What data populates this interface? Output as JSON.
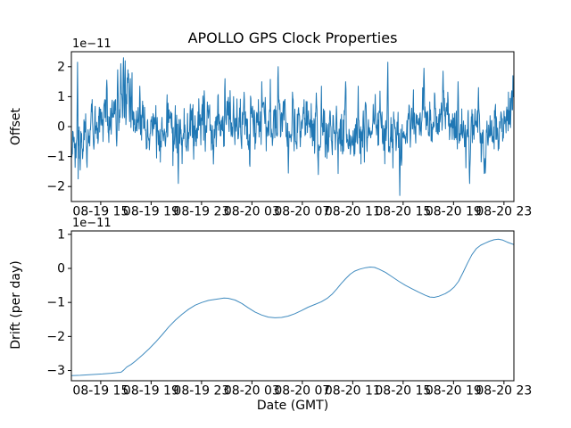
{
  "figure": {
    "title": "APOLLO GPS Clock Properties",
    "xlabel": "Date (GMT)",
    "background": "#ffffff",
    "line_color": "#1f77b4"
  },
  "chart_data": [
    {
      "id": "offset",
      "type": "line",
      "ylabel": "Offset",
      "offset_text": "1e−11",
      "ylim": [
        -2.5,
        2.5
      ],
      "yticks": [
        2,
        1,
        0,
        -1,
        -2
      ],
      "ytick_labels": [
        "2",
        "1",
        "0",
        "−1",
        "−2"
      ],
      "xlim_hours": [
        12.67,
        47.79
      ],
      "xticks_hours": [
        15,
        19,
        23,
        27,
        31,
        35,
        39,
        43,
        47
      ],
      "xtick_labels": [
        "08-19 15",
        "08-19 19",
        "08-19 23",
        "08-20 03",
        "08-20 07",
        "08-20 11",
        "08-20 15",
        "08-20 19",
        "08-20 23"
      ],
      "series": {
        "kind": "noise",
        "color": "#1f77b4",
        "width": 1,
        "opacity": 1,
        "n_points": 1300,
        "seed": 20030819,
        "noise_std": 0.45,
        "ar": 0.42,
        "clip": [
          -2.35,
          2.3
        ],
        "mean_wander": [
          [
            0,
            -0.55
          ],
          [
            0.012,
            -1.1
          ],
          [
            0.03,
            0.1
          ],
          [
            0.06,
            0.05
          ],
          [
            0.1,
            0.3
          ],
          [
            0.115,
            0.85
          ],
          [
            0.125,
            0.75
          ],
          [
            0.14,
            0.2
          ],
          [
            0.16,
            0.05
          ],
          [
            0.2,
            -0.05
          ],
          [
            0.24,
            -0.3
          ],
          [
            0.28,
            0.0
          ],
          [
            0.32,
            0.05
          ],
          [
            0.36,
            0.15
          ],
          [
            0.4,
            0.0
          ],
          [
            0.44,
            0.2
          ],
          [
            0.47,
            0.3
          ],
          [
            0.5,
            -0.1
          ],
          [
            0.53,
            0.3
          ],
          [
            0.56,
            -0.2
          ],
          [
            0.6,
            -0.3
          ],
          [
            0.64,
            -0.1
          ],
          [
            0.68,
            0.1
          ],
          [
            0.71,
            -0.1
          ],
          [
            0.74,
            -0.45
          ],
          [
            0.77,
            0.1
          ],
          [
            0.8,
            0.35
          ],
          [
            0.83,
            0.3
          ],
          [
            0.86,
            0.2
          ],
          [
            0.9,
            -0.3
          ],
          [
            0.93,
            -0.4
          ],
          [
            0.96,
            -0.15
          ],
          [
            0.99,
            0.3
          ],
          [
            1,
            1.15
          ]
        ],
        "spikes": [
          [
            0.014,
            2.15
          ],
          [
            0.02,
            -1.45
          ],
          [
            0.08,
            1.55
          ],
          [
            0.105,
            1.9
          ],
          [
            0.112,
            2.1
          ],
          [
            0.118,
            2.3
          ],
          [
            0.122,
            2.2
          ],
          [
            0.128,
            1.9
          ],
          [
            0.133,
            1.6
          ],
          [
            0.155,
            1.35
          ],
          [
            0.242,
            -1.9
          ],
          [
            0.3,
            1.2
          ],
          [
            0.347,
            1.6
          ],
          [
            0.39,
            1.15
          ],
          [
            0.43,
            1.5
          ],
          [
            0.467,
            2.0
          ],
          [
            0.49,
            -1.55
          ],
          [
            0.558,
            -1.6
          ],
          [
            0.565,
            1.35
          ],
          [
            0.62,
            1.5
          ],
          [
            0.648,
            1.35
          ],
          [
            0.715,
            2.15
          ],
          [
            0.742,
            -2.3
          ],
          [
            0.797,
            1.95
          ],
          [
            0.84,
            1.85
          ],
          [
            0.874,
            1.5
          ],
          [
            0.9,
            -1.9
          ],
          [
            0.92,
            1.3
          ],
          [
            0.935,
            -1.55
          ],
          [
            0.995,
            1.2
          ]
        ]
      }
    },
    {
      "id": "drift",
      "type": "line",
      "ylabel": "Drift (per day)",
      "offset_text": "1e−11",
      "ylim": [
        -3.3,
        1.1
      ],
      "yticks": [
        1,
        0,
        -1,
        -2,
        -3
      ],
      "ytick_labels": [
        "1",
        "0",
        "−1",
        "−2",
        "−3"
      ],
      "xlim_hours": [
        12.67,
        47.79
      ],
      "xticks_hours": [
        15,
        19,
        23,
        27,
        31,
        35,
        39,
        43,
        47
      ],
      "xtick_labels": [
        "08-19 15",
        "08-19 19",
        "08-19 23",
        "08-20 03",
        "08-20 07",
        "08-20 11",
        "08-20 15",
        "08-20 19",
        "08-20 23"
      ],
      "series": {
        "kind": "points",
        "color": "#1f77b4",
        "width": 1,
        "opacity": 0.85,
        "points": [
          [
            0,
            -3.15
          ],
          [
            0.02,
            -3.14
          ],
          [
            0.045,
            -3.12
          ],
          [
            0.07,
            -3.1
          ],
          [
            0.09,
            -3.08
          ],
          [
            0.105,
            -3.06
          ],
          [
            0.112,
            -3.05
          ],
          [
            0.118,
            -2.99
          ],
          [
            0.125,
            -2.9
          ],
          [
            0.135,
            -2.82
          ],
          [
            0.145,
            -2.72
          ],
          [
            0.16,
            -2.55
          ],
          [
            0.175,
            -2.37
          ],
          [
            0.19,
            -2.17
          ],
          [
            0.205,
            -1.95
          ],
          [
            0.22,
            -1.72
          ],
          [
            0.235,
            -1.52
          ],
          [
            0.25,
            -1.35
          ],
          [
            0.265,
            -1.2
          ],
          [
            0.28,
            -1.08
          ],
          [
            0.295,
            -1.0
          ],
          [
            0.31,
            -0.94
          ],
          [
            0.325,
            -0.91
          ],
          [
            0.335,
            -0.89
          ],
          [
            0.345,
            -0.87
          ],
          [
            0.355,
            -0.88
          ],
          [
            0.37,
            -0.93
          ],
          [
            0.385,
            -1.03
          ],
          [
            0.4,
            -1.16
          ],
          [
            0.415,
            -1.28
          ],
          [
            0.43,
            -1.37
          ],
          [
            0.445,
            -1.43
          ],
          [
            0.46,
            -1.45
          ],
          [
            0.475,
            -1.44
          ],
          [
            0.49,
            -1.4
          ],
          [
            0.505,
            -1.33
          ],
          [
            0.52,
            -1.24
          ],
          [
            0.535,
            -1.14
          ],
          [
            0.55,
            -1.06
          ],
          [
            0.565,
            -0.98
          ],
          [
            0.578,
            -0.88
          ],
          [
            0.59,
            -0.75
          ],
          [
            0.6,
            -0.6
          ],
          [
            0.61,
            -0.44
          ],
          [
            0.62,
            -0.3
          ],
          [
            0.63,
            -0.17
          ],
          [
            0.64,
            -0.08
          ],
          [
            0.652,
            -0.02
          ],
          [
            0.665,
            0.02
          ],
          [
            0.675,
            0.04
          ],
          [
            0.685,
            0.03
          ],
          [
            0.695,
            -0.02
          ],
          [
            0.71,
            -0.12
          ],
          [
            0.725,
            -0.25
          ],
          [
            0.74,
            -0.38
          ],
          [
            0.755,
            -0.5
          ],
          [
            0.77,
            -0.6
          ],
          [
            0.785,
            -0.7
          ],
          [
            0.8,
            -0.79
          ],
          [
            0.81,
            -0.84
          ],
          [
            0.82,
            -0.85
          ],
          [
            0.83,
            -0.82
          ],
          [
            0.845,
            -0.74
          ],
          [
            0.855,
            -0.66
          ],
          [
            0.865,
            -0.55
          ],
          [
            0.875,
            -0.38
          ],
          [
            0.885,
            -0.12
          ],
          [
            0.895,
            0.15
          ],
          [
            0.905,
            0.4
          ],
          [
            0.915,
            0.58
          ],
          [
            0.925,
            0.68
          ],
          [
            0.935,
            0.74
          ],
          [
            0.945,
            0.8
          ],
          [
            0.955,
            0.84
          ],
          [
            0.965,
            0.86
          ],
          [
            0.975,
            0.83
          ],
          [
            0.985,
            0.77
          ],
          [
            1,
            0.7
          ]
        ]
      }
    }
  ]
}
